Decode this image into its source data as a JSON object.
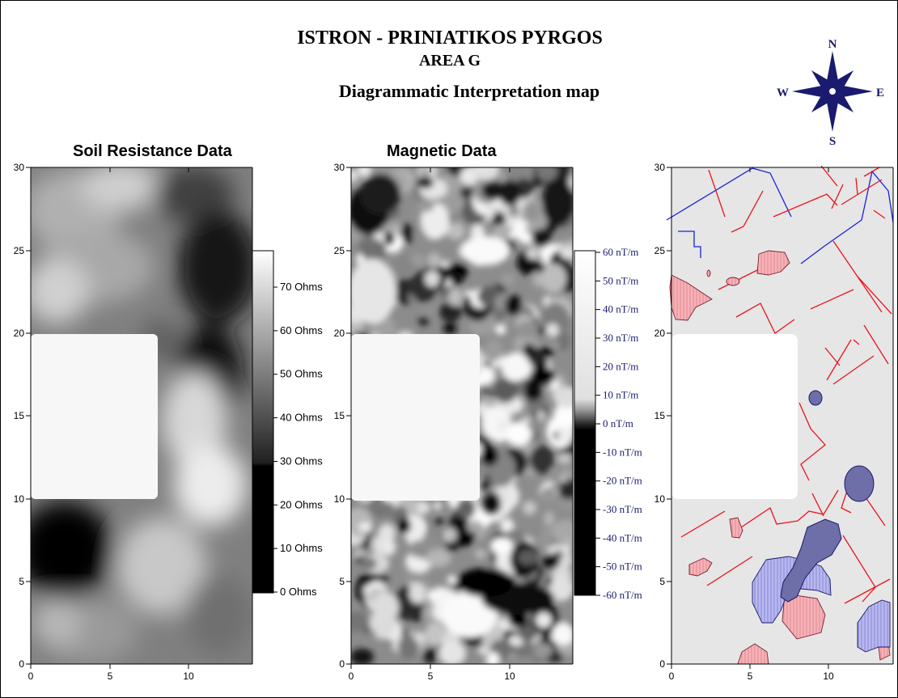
{
  "header": {
    "title": "ISTRON - PRINIATIKOS PYRGOS",
    "subtitle": "AREA G",
    "caption": "Diagrammatic Interpretation map"
  },
  "compass": {
    "north": "N",
    "south": "S",
    "east": "E",
    "west": "W",
    "color": "#1a1a6e"
  },
  "panels": {
    "resistance": {
      "title": "Soil Resistance Data"
    },
    "magnetic": {
      "title": "Magnetic Data"
    },
    "interpretation": {
      "title": ""
    }
  },
  "axes": {
    "x_ticks": [
      "0",
      "5",
      "10"
    ],
    "y_ticks": [
      "0",
      "5",
      "10",
      "15",
      "20",
      "25",
      "30"
    ],
    "x_range": [
      0,
      14
    ],
    "y_range": [
      0,
      30
    ]
  },
  "legends": {
    "resistance": {
      "labels": [
        "70 Ohms",
        "60 Ohms",
        "50 Ohms",
        "40 Ohms",
        "30 Ohms",
        "20 Ohms",
        "10 Ohms",
        "0 Ohms"
      ]
    },
    "magnetic": {
      "labels": [
        "60 nT/m",
        "50 nT/m",
        "40 nT/m",
        "30 nT/m",
        "20 nT/m",
        "10 nT/m",
        "0 nT/m",
        "-10 nT/m",
        "-20 nT/m",
        "-30 nT/m",
        "-40 nT/m",
        "-50 nT/m",
        "-60 nT/m"
      ]
    }
  },
  "colors": {
    "red_lines": "#e8141e",
    "blue_lines": "#1a22d6",
    "pink_fill": "#f4b3b8",
    "lavender_fill": "#b9b8ef",
    "dark_purple_fill": "#6e6ea8",
    "map_background": "#e6e6e6"
  }
}
